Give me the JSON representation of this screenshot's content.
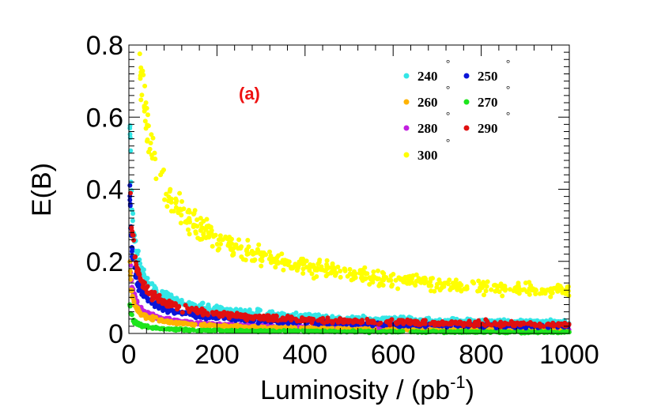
{
  "chart_data": {
    "type": "scatter",
    "title": "",
    "xlabel": "Luminosity / (pb",
    "xlabel_sup": "-1",
    "xlabel_close": ")",
    "ylabel": "E(B)",
    "xlim": [
      0,
      1000
    ],
    "ylim": [
      0,
      0.8
    ],
    "x_ticks": [
      "0",
      "200",
      "400",
      "600",
      "800",
      "1000"
    ],
    "y_ticks": [
      "0",
      "0.2",
      "0.4",
      "0.6",
      "0.8"
    ],
    "x_tick_values": [
      0,
      200,
      400,
      600,
      800,
      1000
    ],
    "y_tick_values": [
      0,
      0.2,
      0.4,
      0.6,
      0.8
    ],
    "grid": false,
    "legend_position": "top-right",
    "annotation": {
      "text": "(a)",
      "color": "#ee1111"
    },
    "degree_symbol": "°",
    "series": [
      {
        "name": "240",
        "color": "#33e6e6",
        "a": 0.95,
        "b": 0.0,
        "noise": 0.01
      },
      {
        "name": "250",
        "color": "#0a14d8",
        "a": 0.62,
        "b": 0.0,
        "noise": 0.008
      },
      {
        "name": "260",
        "color": "#ffb300",
        "a": 0.3,
        "b": 0.0,
        "noise": 0.004
      },
      {
        "name": "270",
        "color": "#1de51d",
        "a": 0.12,
        "b": 0.0,
        "noise": 0.004
      },
      {
        "name": "280",
        "color": "#c21fe0",
        "a": 0.36,
        "b": 0.0,
        "noise": 0.004
      },
      {
        "name": "290",
        "color": "#e01010",
        "a": 0.78,
        "b": 0.0,
        "noise": 0.01
      },
      {
        "name": "300",
        "color": "#ffff00",
        "a": 3.7,
        "b": 0.0,
        "noise": 0.018
      }
    ]
  }
}
